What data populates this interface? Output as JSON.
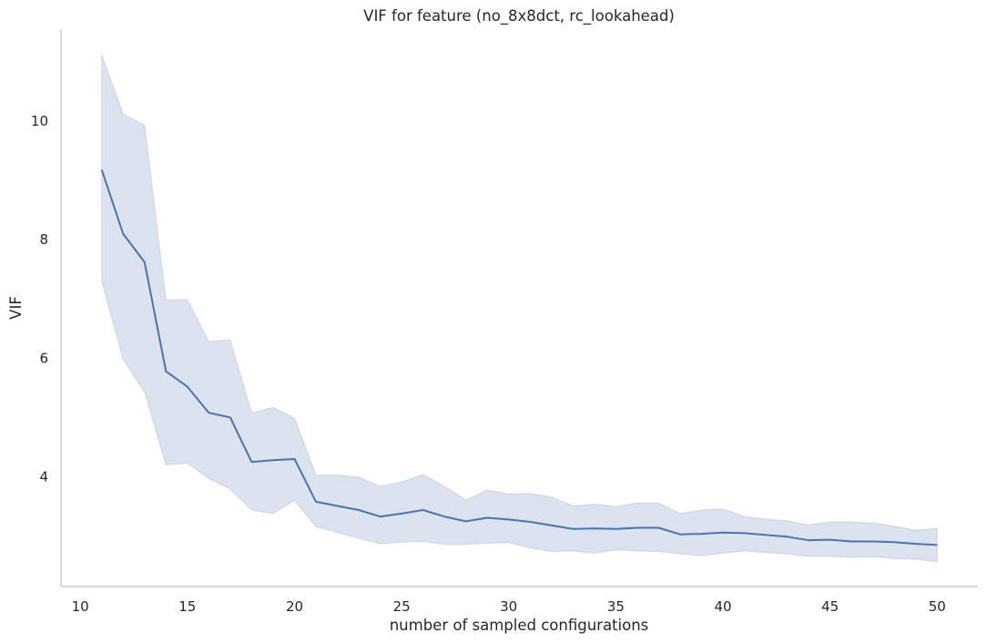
{
  "chart_data": {
    "type": "line",
    "title": "VIF for feature (no_8x8dct, rc_lookahead)",
    "xlabel": "number of sampled configurations",
    "ylabel": "VIF",
    "xlim": [
      9.1,
      51.9
    ],
    "ylim": [
      2.15,
      11.55
    ],
    "xticks": [
      10,
      15,
      20,
      25,
      30,
      35,
      40,
      45,
      50
    ],
    "yticks": [
      4,
      6,
      8,
      10
    ],
    "grid": false,
    "colors": {
      "line": "#4c72b0",
      "band": "#4c72b0",
      "axis": "#cccccc"
    },
    "series": [
      {
        "x": [
          11,
          12,
          13,
          14,
          15,
          16,
          17,
          18,
          19,
          20,
          21,
          22,
          23,
          24,
          25,
          26,
          27,
          28,
          29,
          30,
          31,
          32,
          33,
          34,
          35,
          36,
          37,
          38,
          39,
          40,
          41,
          42,
          43,
          44,
          45,
          46,
          47,
          48,
          49,
          50
        ],
        "values": [
          9.18,
          8.1,
          7.62,
          5.78,
          5.52,
          5.08,
          5.0,
          4.25,
          4.28,
          4.3,
          3.58,
          3.51,
          3.44,
          3.33,
          3.38,
          3.44,
          3.33,
          3.25,
          3.31,
          3.28,
          3.24,
          3.18,
          3.12,
          3.13,
          3.12,
          3.14,
          3.14,
          3.03,
          3.04,
          3.06,
          3.05,
          3.02,
          2.99,
          2.93,
          2.94,
          2.91,
          2.91,
          2.9,
          2.87,
          2.85
        ],
        "ci_low": [
          7.3,
          5.98,
          5.43,
          4.2,
          4.23,
          3.97,
          3.79,
          3.44,
          3.38,
          3.6,
          3.16,
          3.06,
          2.96,
          2.87,
          2.9,
          2.91,
          2.86,
          2.86,
          2.88,
          2.89,
          2.8,
          2.74,
          2.75,
          2.71,
          2.77,
          2.75,
          2.74,
          2.7,
          2.67,
          2.71,
          2.75,
          2.72,
          2.7,
          2.66,
          2.66,
          2.64,
          2.65,
          2.62,
          2.61,
          2.57
        ],
        "ci_high": [
          11.12,
          10.12,
          9.93,
          6.98,
          6.99,
          6.28,
          6.31,
          5.08,
          5.17,
          4.99,
          4.03,
          4.03,
          4.0,
          3.84,
          3.91,
          4.04,
          3.84,
          3.61,
          3.78,
          3.71,
          3.72,
          3.66,
          3.51,
          3.54,
          3.5,
          3.56,
          3.56,
          3.38,
          3.44,
          3.46,
          3.33,
          3.29,
          3.26,
          3.19,
          3.24,
          3.24,
          3.22,
          3.17,
          3.1,
          3.13
        ]
      }
    ]
  }
}
